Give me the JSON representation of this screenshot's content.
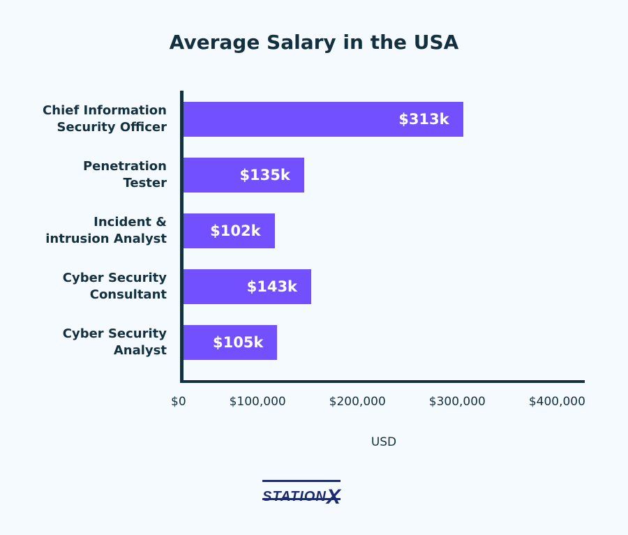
{
  "chart_data": {
    "type": "bar",
    "orientation": "horizontal",
    "title": "Average Salary in the USA",
    "xlabel": "USD",
    "ylabel": "",
    "categories": [
      "Chief Information\nSecurity Officer",
      "Penetration\nTester",
      "Incident &\nintrusion Analyst",
      "Cyber Security\nConsultant",
      "Cyber Security\nAnalyst"
    ],
    "values": [
      313000,
      135000,
      102000,
      143000,
      105000
    ],
    "data_labels": [
      "$313k",
      "$135k",
      "$102k",
      "$143k",
      "$105k"
    ],
    "xlim": [
      0,
      400000
    ],
    "x_ticks": [
      "$0",
      "$100,000",
      "$200,000",
      "$300,000",
      "$400,000"
    ],
    "grid": false,
    "colors": {
      "bar": "#7350FF",
      "axis": "#12303F",
      "background": "#F5FAFE"
    }
  },
  "logo": {
    "text": "STATION",
    "accent": "X"
  }
}
